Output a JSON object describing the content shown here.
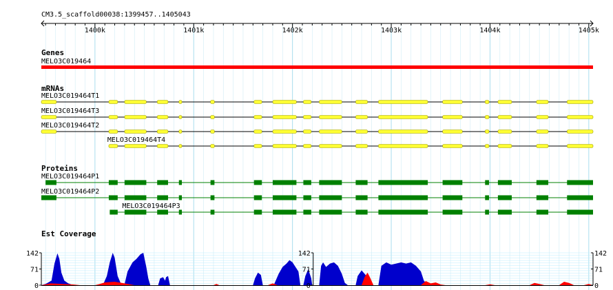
{
  "ruler": {
    "region": "CM3.5_scaffold00038:1399457..1405043",
    "start": 1399457,
    "end": 1405043,
    "ticks": [
      {
        "pos": 1400000,
        "label": "1400k"
      },
      {
        "pos": 1401000,
        "label": "1401k"
      },
      {
        "pos": 1402000,
        "label": "1402k"
      },
      {
        "pos": 1403000,
        "label": "1403k"
      },
      {
        "pos": 1404000,
        "label": "1404k"
      },
      {
        "pos": 1405000,
        "label": "1405k"
      }
    ]
  },
  "tracks": {
    "genes": {
      "title": "Genes",
      "features": [
        {
          "name": "MELO3C019464",
          "start": 1399457,
          "end": 1405043,
          "color": "#ff0000"
        }
      ]
    },
    "mrnas": {
      "title": "mRNAs",
      "fill": "#ffff33",
      "stroke": "#999900",
      "features": [
        {
          "name": "MELO3C019464T1",
          "start": 1399457,
          "end": 1405043,
          "exons": [
            [
              1399457,
              1399610
            ],
            [
              1400140,
              1400230
            ],
            [
              1400300,
              1400520
            ],
            [
              1400630,
              1400740
            ],
            [
              1400850,
              1400880
            ],
            [
              1401170,
              1401210
            ],
            [
              1401610,
              1401690
            ],
            [
              1401800,
              1402040
            ],
            [
              1402110,
              1402190
            ],
            [
              1402270,
              1402500
            ],
            [
              1402640,
              1402760
            ],
            [
              1402870,
              1403370
            ],
            [
              1403520,
              1403720
            ],
            [
              1403950,
              1403990
            ],
            [
              1404080,
              1404220
            ],
            [
              1404470,
              1404590
            ],
            [
              1404780,
              1405043
            ]
          ]
        },
        {
          "name": "MELO3C019464T3",
          "start": 1399457,
          "end": 1405043,
          "exons": [
            [
              1399457,
              1399610
            ],
            [
              1400140,
              1400230
            ],
            [
              1400300,
              1400520
            ],
            [
              1400630,
              1400740
            ],
            [
              1400850,
              1400880
            ],
            [
              1401170,
              1401210
            ],
            [
              1401610,
              1401690
            ],
            [
              1401800,
              1402040
            ],
            [
              1402110,
              1402190
            ],
            [
              1402270,
              1402500
            ],
            [
              1402640,
              1402760
            ],
            [
              1402870,
              1403370
            ],
            [
              1403520,
              1403720
            ],
            [
              1403950,
              1403990
            ],
            [
              1404080,
              1404220
            ],
            [
              1404470,
              1404590
            ],
            [
              1404780,
              1405043
            ]
          ]
        },
        {
          "name": "MELO3C019464T2",
          "start": 1399457,
          "end": 1405043,
          "exons": [
            [
              1399457,
              1399610
            ],
            [
              1400140,
              1400230
            ],
            [
              1400300,
              1400520
            ],
            [
              1400630,
              1400740
            ],
            [
              1400850,
              1400880
            ],
            [
              1401170,
              1401210
            ],
            [
              1401610,
              1401690
            ],
            [
              1401800,
              1402040
            ],
            [
              1402110,
              1402190
            ],
            [
              1402270,
              1402500
            ],
            [
              1402640,
              1402760
            ],
            [
              1402870,
              1403370
            ],
            [
              1403520,
              1403720
            ],
            [
              1403950,
              1403990
            ],
            [
              1404080,
              1404220
            ],
            [
              1404470,
              1404590
            ],
            [
              1404780,
              1405043
            ]
          ]
        },
        {
          "name": "MELO3C019464T4",
          "start": 1400000,
          "end": 1405043,
          "exons": [
            [
              1400140,
              1400230
            ],
            [
              1400300,
              1400520
            ],
            [
              1400630,
              1400740
            ],
            [
              1400850,
              1400880
            ],
            [
              1401170,
              1401210
            ],
            [
              1401610,
              1401690
            ],
            [
              1401800,
              1402040
            ],
            [
              1402110,
              1402190
            ],
            [
              1402270,
              1402500
            ],
            [
              1402640,
              1402760
            ],
            [
              1402870,
              1403370
            ],
            [
              1403520,
              1403720
            ],
            [
              1403950,
              1403990
            ],
            [
              1404080,
              1404220
            ],
            [
              1404470,
              1404590
            ],
            [
              1404780,
              1405043
            ]
          ]
        }
      ]
    },
    "proteins": {
      "title": "Proteins",
      "fill": "#008000",
      "features": [
        {
          "name": "MELO3C019464P1",
          "start": 1399457,
          "end": 1405043,
          "exons": [
            [
              1399500,
              1399610
            ],
            [
              1400140,
              1400230
            ],
            [
              1400300,
              1400520
            ],
            [
              1400630,
              1400740
            ],
            [
              1400850,
              1400880
            ],
            [
              1401170,
              1401210
            ],
            [
              1401610,
              1401690
            ],
            [
              1401800,
              1402040
            ],
            [
              1402110,
              1402190
            ],
            [
              1402270,
              1402500
            ],
            [
              1402640,
              1402760
            ],
            [
              1402870,
              1403370
            ],
            [
              1403520,
              1403720
            ],
            [
              1403950,
              1403990
            ],
            [
              1404080,
              1404220
            ],
            [
              1404470,
              1404590
            ],
            [
              1404780,
              1405043
            ]
          ]
        },
        {
          "name": "MELO3C019464P2",
          "start": 1399457,
          "end": 1405043,
          "exons": [
            [
              1399457,
              1399610
            ],
            [
              1400140,
              1400230
            ],
            [
              1400300,
              1400520
            ],
            [
              1400630,
              1400740
            ],
            [
              1400850,
              1400880
            ],
            [
              1401170,
              1401210
            ],
            [
              1401610,
              1401690
            ],
            [
              1401800,
              1402040
            ],
            [
              1402110,
              1402190
            ],
            [
              1402270,
              1402500
            ],
            [
              1402640,
              1402760
            ],
            [
              1402870,
              1403370
            ],
            [
              1403520,
              1403720
            ],
            [
              1403950,
              1403990
            ],
            [
              1404080,
              1404220
            ],
            [
              1404470,
              1404590
            ],
            [
              1404780,
              1405043
            ]
          ]
        },
        {
          "name": "MELO3C019464P3",
          "start": 1400150,
          "end": 1405043,
          "exons": [
            [
              1400150,
              1400230
            ],
            [
              1400300,
              1400520
            ],
            [
              1400630,
              1400740
            ],
            [
              1400850,
              1400880
            ],
            [
              1401170,
              1401210
            ],
            [
              1401610,
              1401690
            ],
            [
              1401800,
              1402040
            ],
            [
              1402110,
              1402190
            ],
            [
              1402270,
              1402500
            ],
            [
              1402640,
              1402760
            ],
            [
              1402870,
              1403370
            ],
            [
              1403520,
              1403720
            ],
            [
              1403950,
              1403990
            ],
            [
              1404080,
              1404220
            ],
            [
              1404470,
              1404590
            ],
            [
              1404780,
              1405043
            ]
          ]
        }
      ]
    },
    "est": {
      "title": "Est Coverage",
      "max": 142,
      "axis_labels": [
        "142",
        "71",
        "0"
      ],
      "axis_positions": [
        1399457,
        1402210,
        1405043
      ],
      "blue": "#0000cc",
      "red": "#ff0000",
      "blue_points": [
        [
          1399457,
          0
        ],
        [
          1399500,
          5
        ],
        [
          1399560,
          20
        ],
        [
          1399590,
          95
        ],
        [
          1399620,
          140
        ],
        [
          1399640,
          115
        ],
        [
          1399660,
          55
        ],
        [
          1399690,
          20
        ],
        [
          1399730,
          8
        ],
        [
          1399780,
          0
        ],
        [
          1400080,
          0
        ],
        [
          1400120,
          40
        ],
        [
          1400150,
          100
        ],
        [
          1400180,
          142
        ],
        [
          1400200,
          120
        ],
        [
          1400230,
          40
        ],
        [
          1400260,
          10
        ],
        [
          1400300,
          5
        ],
        [
          1400330,
          60
        ],
        [
          1400380,
          100
        ],
        [
          1400420,
          115
        ],
        [
          1400460,
          135
        ],
        [
          1400490,
          142
        ],
        [
          1400520,
          80
        ],
        [
          1400540,
          30
        ],
        [
          1400560,
          0
        ],
        [
          1400640,
          0
        ],
        [
          1400660,
          30
        ],
        [
          1400690,
          35
        ],
        [
          1400710,
          20
        ],
        [
          1400720,
          35
        ],
        [
          1400740,
          40
        ],
        [
          1400760,
          0
        ],
        [
          1401600,
          0
        ],
        [
          1401620,
          30
        ],
        [
          1401650,
          55
        ],
        [
          1401680,
          45
        ],
        [
          1401700,
          0
        ],
        [
          1401810,
          0
        ],
        [
          1401830,
          20
        ],
        [
          1401860,
          50
        ],
        [
          1401900,
          80
        ],
        [
          1401940,
          95
        ],
        [
          1401970,
          110
        ],
        [
          1402000,
          100
        ],
        [
          1402030,
          80
        ],
        [
          1402060,
          60
        ],
        [
          1402080,
          0
        ],
        [
          1402110,
          0
        ],
        [
          1402130,
          40
        ],
        [
          1402160,
          70
        ],
        [
          1402190,
          30
        ],
        [
          1402200,
          0
        ],
        [
          1402270,
          0
        ],
        [
          1402290,
          85
        ],
        [
          1402310,
          100
        ],
        [
          1402340,
          80
        ],
        [
          1402380,
          95
        ],
        [
          1402420,
          100
        ],
        [
          1402460,
          85
        ],
        [
          1402500,
          50
        ],
        [
          1402530,
          10
        ],
        [
          1402560,
          0
        ],
        [
          1402640,
          0
        ],
        [
          1402660,
          40
        ],
        [
          1402700,
          65
        ],
        [
          1402740,
          45
        ],
        [
          1402760,
          0
        ],
        [
          1402870,
          0
        ],
        [
          1402900,
          85
        ],
        [
          1402950,
          100
        ],
        [
          1403000,
          90
        ],
        [
          1403050,
          95
        ],
        [
          1403100,
          100
        ],
        [
          1403150,
          95
        ],
        [
          1403200,
          100
        ],
        [
          1403250,
          85
        ],
        [
          1403300,
          60
        ],
        [
          1403330,
          20
        ],
        [
          1403370,
          0
        ]
      ],
      "red_points": [
        [
          1399457,
          0
        ],
        [
          1399550,
          8
        ],
        [
          1399780,
          3
        ],
        [
          1399850,
          0
        ],
        [
          1400000,
          0
        ],
        [
          1400050,
          5
        ],
        [
          1400100,
          12
        ],
        [
          1400200,
          15
        ],
        [
          1400300,
          8
        ],
        [
          1400400,
          0
        ],
        [
          1401200,
          0
        ],
        [
          1401230,
          5
        ],
        [
          1401260,
          0
        ],
        [
          1401750,
          0
        ],
        [
          1401800,
          8
        ],
        [
          1401850,
          0
        ],
        [
          1402700,
          0
        ],
        [
          1402730,
          35
        ],
        [
          1402760,
          55
        ],
        [
          1402790,
          30
        ],
        [
          1402820,
          0
        ],
        [
          1403300,
          0
        ],
        [
          1403350,
          18
        ],
        [
          1403400,
          8
        ],
        [
          1403450,
          12
        ],
        [
          1403500,
          3
        ],
        [
          1403550,
          0
        ],
        [
          1403950,
          0
        ],
        [
          1404000,
          4
        ],
        [
          1404050,
          0
        ],
        [
          1404400,
          0
        ],
        [
          1404450,
          10
        ],
        [
          1404500,
          5
        ],
        [
          1404550,
          0
        ],
        [
          1404700,
          0
        ],
        [
          1404750,
          15
        ],
        [
          1404800,
          10
        ],
        [
          1404850,
          0
        ],
        [
          1404950,
          0
        ],
        [
          1405000,
          5
        ],
        [
          1405043,
          0
        ]
      ]
    }
  },
  "colors": {
    "grid": "#aaddee",
    "est_bg_line": "#bbeeff",
    "intron_line": "#000000"
  }
}
